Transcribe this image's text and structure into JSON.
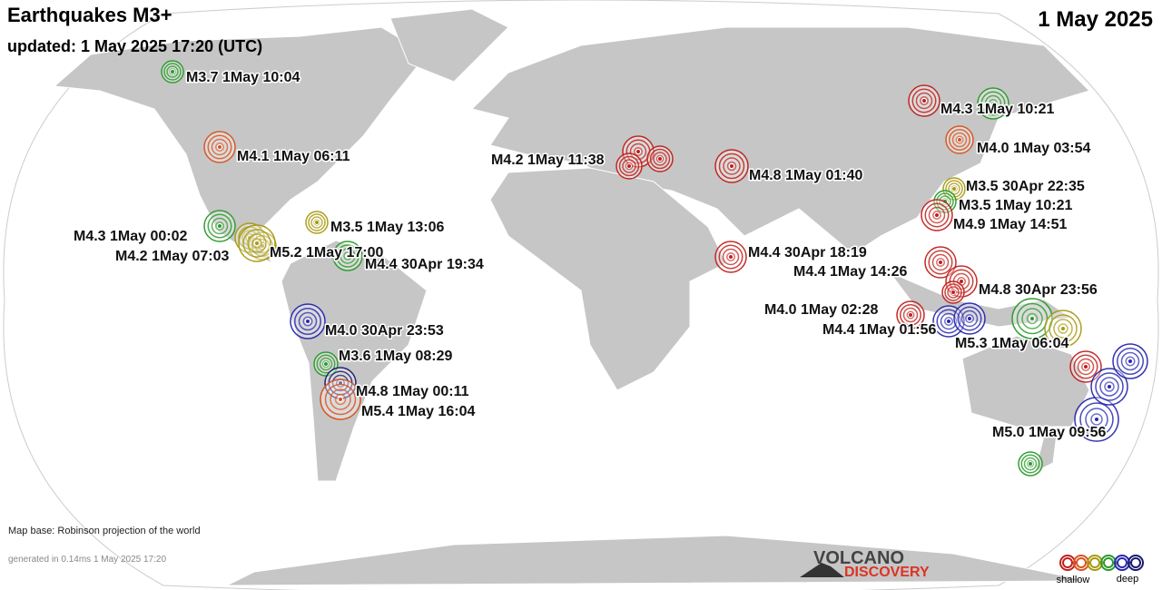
{
  "header": {
    "title": "Earthquakes M3+",
    "updated": "updated:  1 May 2025 17:20 (UTC)",
    "date": "1 May 2025"
  },
  "quakes": [
    {
      "label": "M3.7  1May 10:04"
    },
    {
      "label": "M4.1  1May 06:11"
    },
    {
      "label": "M4.2  1May 11:38"
    },
    {
      "label": "M4.8  1May 01:40"
    },
    {
      "label": "M4.3  1May 10:21"
    },
    {
      "label": "M4.0  1May 03:54"
    },
    {
      "label": "M3.5 30Apr 22:35"
    },
    {
      "label": "M3.5  1May 10:21"
    },
    {
      "label": "M4.9  1May 14:51"
    },
    {
      "label": "M4.3  1May 00:02"
    },
    {
      "label": "M3.5  1May 13:06"
    },
    {
      "label": "M4.2  1May 07:03"
    },
    {
      "label": "M5.2  1May 17:00"
    },
    {
      "label": "M4.4 30Apr 19:34"
    },
    {
      "label": "M4.4 30Apr 18:19"
    },
    {
      "label": "M4.4  1May 14:26"
    },
    {
      "label": "M4.8 30Apr 23:56"
    },
    {
      "label": "M4.0  1May 02:28"
    },
    {
      "label": "M4.4  1May 01:56"
    },
    {
      "label": "M5.3  1May 06:04"
    },
    {
      "label": "M4.0 30Apr 23:53"
    },
    {
      "label": "M3.6  1May 08:29"
    },
    {
      "label": "M4.8  1May 00:11"
    },
    {
      "label": "M5.4  1May 16:04"
    },
    {
      "label": "M5.0  1May 09:56"
    }
  ],
  "footer": {
    "map_base": "Map base: Robinson projection of the world",
    "generated": "generated in 0.14ms  1 May 2025 17:20",
    "logo_top": "VOLCANO",
    "logo_bottom": "DISCOVERY",
    "legend_shallow": "shallow",
    "legend_deep": "deep"
  }
}
